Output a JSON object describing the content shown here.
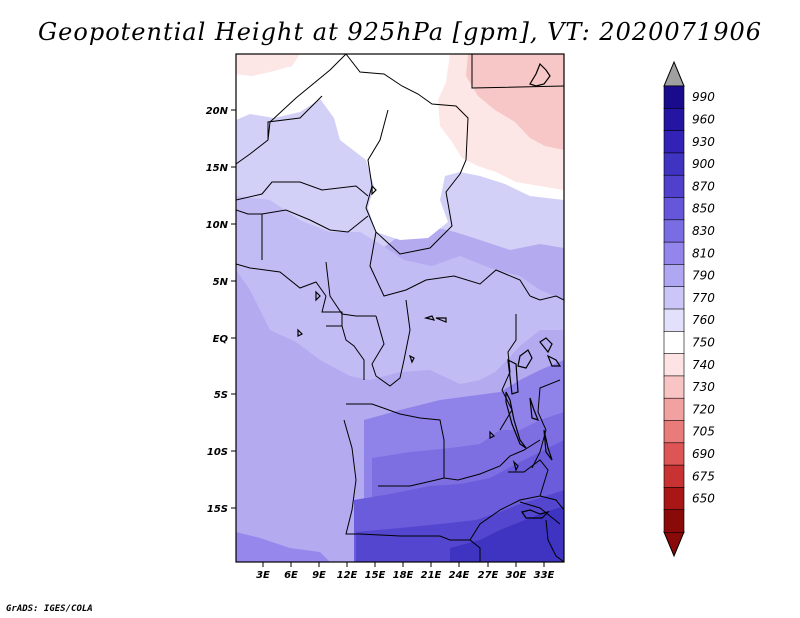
{
  "title": "Geopotential Height at 925hPa [gpm], VT: 2020071906",
  "credit": "GrADS: IGES/COLA",
  "map": {
    "lat_labels": [
      "20N",
      "15N",
      "10N",
      "5N",
      "EQ",
      "5S",
      "10S",
      "15S"
    ],
    "lon_labels": [
      "3E",
      "6E",
      "9E",
      "12E",
      "15E",
      "18E",
      "21E",
      "24E",
      "27E",
      "30E",
      "33E"
    ]
  },
  "colorbar": {
    "levels": [
      "990",
      "960",
      "930",
      "900",
      "870",
      "850",
      "830",
      "810",
      "790",
      "770",
      "760",
      "750",
      "740",
      "730",
      "720",
      "705",
      "690",
      "675",
      "650"
    ],
    "colors": [
      "#1a0a8c",
      "#2515a3",
      "#3222b5",
      "#3f33c2",
      "#5140cc",
      "#6656d9",
      "#7a6ce2",
      "#9385ec",
      "#b0a7f2",
      "#cbc6f7",
      "#e2e0fb",
      "#ffffff",
      "#fde3e3",
      "#f9c4c4",
      "#f2a1a1",
      "#e97b7b",
      "#dd5555",
      "#c83232",
      "#a81616",
      "#8a0a0a"
    ],
    "top_arrow_color": "#a0a0a0",
    "bottom_arrow_color": "#8a0a0a"
  }
}
